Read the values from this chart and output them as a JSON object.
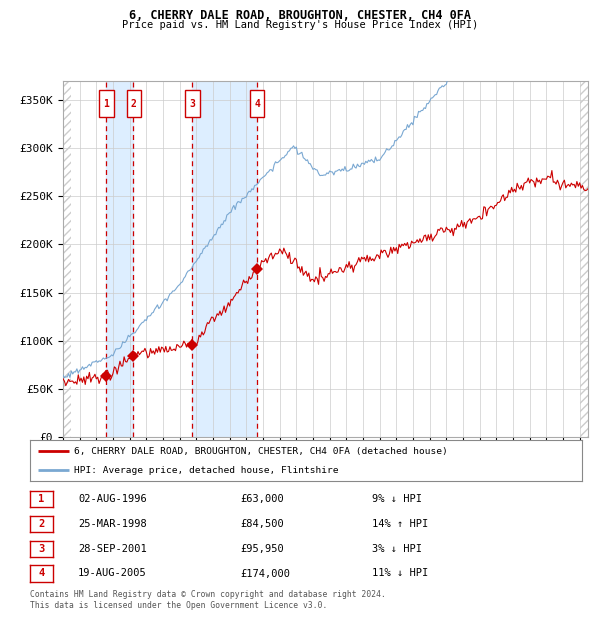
{
  "title1": "6, CHERRY DALE ROAD, BROUGHTON, CHESTER, CH4 0FA",
  "title2": "Price paid vs. HM Land Registry's House Price Index (HPI)",
  "ylabel_ticks": [
    "£0",
    "£50K",
    "£100K",
    "£150K",
    "£200K",
    "£250K",
    "£300K",
    "£350K"
  ],
  "ytick_vals": [
    0,
    50000,
    100000,
    150000,
    200000,
    250000,
    300000,
    350000
  ],
  "ylim": [
    0,
    370000
  ],
  "xlim_start": 1994.0,
  "xlim_end": 2025.5,
  "sale_dates": [
    1996.583,
    1998.229,
    2001.747,
    2005.635
  ],
  "sale_prices": [
    63000,
    84500,
    95950,
    174000
  ],
  "sale_labels": [
    "1",
    "2",
    "3",
    "4"
  ],
  "sale_info": [
    "02-AUG-1996",
    "25-MAR-1998",
    "28-SEP-2001",
    "19-AUG-2005"
  ],
  "sale_prices_str": [
    "£63,000",
    "£84,500",
    "£95,950",
    "£174,000"
  ],
  "sale_hpi_pct": [
    "9% ↓ HPI",
    "14% ↑ HPI",
    "3% ↓ HPI",
    "11% ↓ HPI"
  ],
  "legend_label_red": "6, CHERRY DALE ROAD, BROUGHTON, CHESTER, CH4 0FA (detached house)",
  "legend_label_blue": "HPI: Average price, detached house, Flintshire",
  "footer": "Contains HM Land Registry data © Crown copyright and database right 2024.\nThis data is licensed under the Open Government Licence v3.0.",
  "red_color": "#cc0000",
  "blue_color": "#7aa8d2",
  "shade_color": "#ddeeff",
  "dashed_color": "#cc0000",
  "grid_color": "#cccccc",
  "hatch_color": "#cccccc"
}
